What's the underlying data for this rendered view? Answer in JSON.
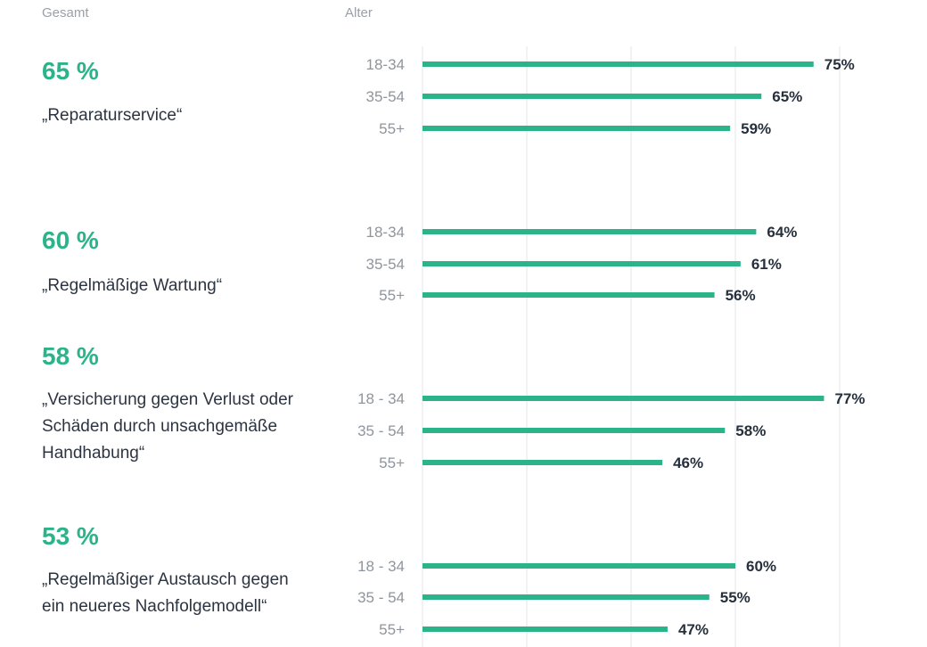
{
  "headers": {
    "total": "Gesamt",
    "age": "Alter"
  },
  "colors": {
    "bar": "#2bb38a",
    "total": "#2bb38a",
    "value": "#26303d",
    "age_label": "#8e959c",
    "grid": "#e4e6e8"
  },
  "groups": [
    {
      "total": "65 %",
      "label": "„Reparaturservice“"
    },
    {
      "total": "60 %",
      "label": "„Regelmäßige Wartung“"
    },
    {
      "total": "58 %",
      "label": "„Versicherung gegen Verlust oder Schäden durch unsachgemäße Handhabung“"
    },
    {
      "total": "53 %",
      "label": "„Regelmäßiger Austausch gegen ein neueres Nachfolgemodell“"
    }
  ],
  "chart_data": {
    "type": "bar",
    "orientation": "horizontal",
    "xlim": [
      0,
      80
    ],
    "grid": true,
    "groups": [
      {
        "name": "„Reparaturservice“",
        "categories": [
          "18-34",
          "35-54",
          "55+"
        ],
        "values": [
          75,
          65,
          59
        ],
        "labels": [
          "75%",
          "65%",
          "59%"
        ]
      },
      {
        "name": "„Regelmäßige Wartung“",
        "categories": [
          "18-34",
          "35-54",
          "55+"
        ],
        "values": [
          64,
          61,
          56
        ],
        "labels": [
          "64%",
          "61%",
          "56%"
        ]
      },
      {
        "name": "„Versicherung gegen Verlust oder Schäden durch unsachgemäße Handhabung“",
        "categories": [
          "18 - 34",
          "35 - 54",
          "55+"
        ],
        "values": [
          77,
          58,
          46
        ],
        "labels": [
          "77%",
          "58%",
          "46%"
        ]
      },
      {
        "name": "„Regelmäßiger Austausch gegen ein neueres Nachfolgemodell“",
        "categories": [
          "18 - 34",
          "35 - 54",
          "55+"
        ],
        "values": [
          60,
          55,
          47
        ],
        "labels": [
          "60%",
          "55%",
          "47%"
        ]
      }
    ]
  }
}
